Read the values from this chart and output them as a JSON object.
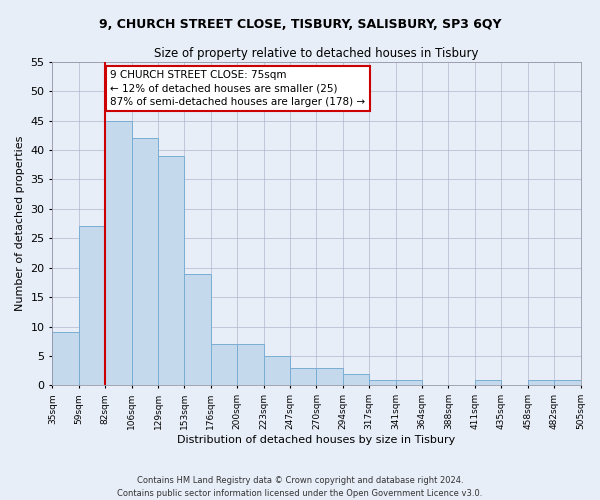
{
  "title1": "9, CHURCH STREET CLOSE, TISBURY, SALISBURY, SP3 6QY",
  "title2": "Size of property relative to detached houses in Tisbury",
  "xlabel": "Distribution of detached houses by size in Tisbury",
  "ylabel": "Number of detached properties",
  "bar_values": [
    9,
    27,
    45,
    42,
    39,
    19,
    7,
    7,
    5,
    3,
    3,
    2,
    1,
    1,
    0,
    0,
    1,
    0,
    1,
    1
  ],
  "categories": [
    "35sqm",
    "59sqm",
    "82sqm",
    "106sqm",
    "129sqm",
    "153sqm",
    "176sqm",
    "200sqm",
    "223sqm",
    "247sqm",
    "270sqm",
    "294sqm",
    "317sqm",
    "341sqm",
    "364sqm",
    "388sqm",
    "411sqm",
    "435sqm",
    "458sqm",
    "482sqm",
    "505sqm"
  ],
  "bar_color": "#c5d9ed",
  "bar_edge_color": "#7aadd4",
  "grid_color": "#b0b8cc",
  "background_color": "#e8eef8",
  "vline_color": "#cc0000",
  "vline_pos": 2,
  "annotation_text": "9 CHURCH STREET CLOSE: 75sqm\n← 12% of detached houses are smaller (25)\n87% of semi-detached houses are larger (178) →",
  "annotation_box_color": "#ffffff",
  "annotation_box_edge": "#cc0000",
  "ylim": [
    0,
    55
  ],
  "yticks": [
    0,
    5,
    10,
    15,
    20,
    25,
    30,
    35,
    40,
    45,
    50,
    55
  ],
  "footnote1": "Contains HM Land Registry data © Crown copyright and database right 2024.",
  "footnote2": "Contains public sector information licensed under the Open Government Licence v3.0."
}
